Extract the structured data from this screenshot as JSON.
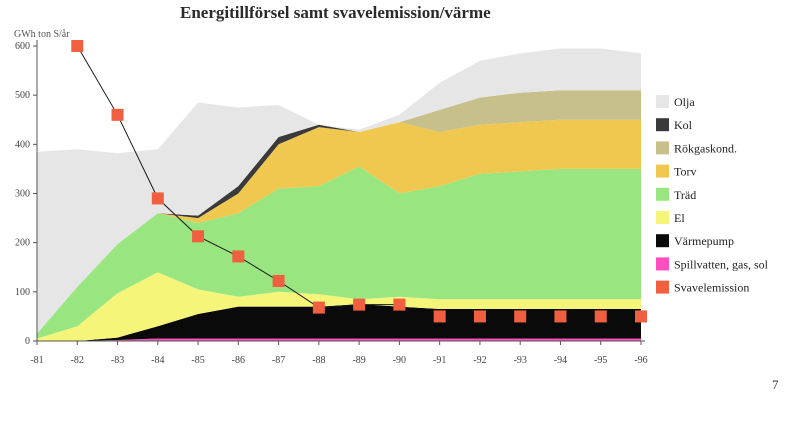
{
  "page_number": "7",
  "chart_data": {
    "type": "area",
    "title": "Energitillförsel samt svavelemission/värme",
    "y_unit_label": "GWh ton S/år",
    "categories": [
      "-81",
      "-82",
      "-83",
      "-84",
      "-85",
      "-86",
      "-87",
      "-88",
      "-89",
      "-90",
      "-91",
      "-92",
      "-93",
      "-94",
      "-95",
      "-96"
    ],
    "ylim": [
      0,
      600
    ],
    "yticks": [
      "0",
      "100",
      "200",
      "300",
      "400",
      "500",
      "600"
    ],
    "stack_order_bottom_to_top": [
      "Spillvatten, gas, sol",
      "Värmepump",
      "El",
      "Träd",
      "Torv",
      "Rökgaskond.",
      "Kol",
      "Olja"
    ],
    "series": [
      {
        "name": "Spillvatten, gas, sol",
        "color": "#ff4fbf",
        "values": [
          0,
          0,
          2,
          5,
          5,
          5,
          5,
          5,
          5,
          5,
          5,
          5,
          5,
          5,
          5,
          5
        ]
      },
      {
        "name": "Värmepump",
        "color": "#0a0a0a",
        "values": [
          0,
          0,
          5,
          25,
          50,
          65,
          65,
          65,
          70,
          65,
          60,
          60,
          60,
          60,
          60,
          60
        ]
      },
      {
        "name": "El",
        "color": "#f5f57a",
        "values": [
          5,
          30,
          90,
          110,
          50,
          20,
          30,
          25,
          10,
          20,
          20,
          20,
          20,
          20,
          20,
          20
        ]
      },
      {
        "name": "Träd",
        "color": "#99e680",
        "values": [
          10,
          80,
          100,
          120,
          135,
          170,
          210,
          220,
          270,
          210,
          230,
          255,
          260,
          265,
          265,
          265
        ]
      },
      {
        "name": "Torv",
        "color": "#f0c850",
        "values": [
          0,
          0,
          0,
          0,
          10,
          40,
          90,
          120,
          70,
          145,
          110,
          100,
          100,
          100,
          100,
          100
        ]
      },
      {
        "name": "Rökgaskond.",
        "color": "#c8c08a",
        "values": [
          0,
          0,
          0,
          0,
          0,
          0,
          0,
          0,
          0,
          0,
          45,
          55,
          60,
          60,
          60,
          60
        ]
      },
      {
        "name": "Kol",
        "color": "#3a3a3a",
        "values": [
          0,
          0,
          0,
          0,
          5,
          15,
          15,
          5,
          0,
          0,
          0,
          0,
          0,
          0,
          0,
          0
        ]
      },
      {
        "name": "Olja",
        "color": "#e6e6e6",
        "values": [
          370,
          280,
          185,
          130,
          230,
          160,
          65,
          0,
          5,
          15,
          55,
          75,
          80,
          85,
          85,
          75
        ]
      }
    ],
    "emission": {
      "name": "Svavelemission",
      "color": "#f06040",
      "values": [
        null,
        600,
        460,
        290,
        213,
        172,
        122,
        68,
        74,
        74,
        50,
        50,
        50,
        50,
        50,
        50
      ]
    },
    "legend": {
      "placement": "right",
      "entries": [
        {
          "label": "Olja",
          "color": "#e6e6e6"
        },
        {
          "label": "Kol",
          "color": "#3a3a3a"
        },
        {
          "label": "Rökgaskond.",
          "color": "#c8c08a"
        },
        {
          "label": "Torv",
          "color": "#f0c850"
        },
        {
          "label": "Träd",
          "color": "#99e680"
        },
        {
          "label": "El",
          "color": "#f5f57a"
        },
        {
          "label": "Värmepump",
          "color": "#0a0a0a"
        },
        {
          "label": "Spillvatten, gas, sol",
          "color": "#ff4fbf"
        },
        {
          "label": "Svavelemission",
          "color": "#f06040"
        }
      ]
    },
    "grid": false
  }
}
